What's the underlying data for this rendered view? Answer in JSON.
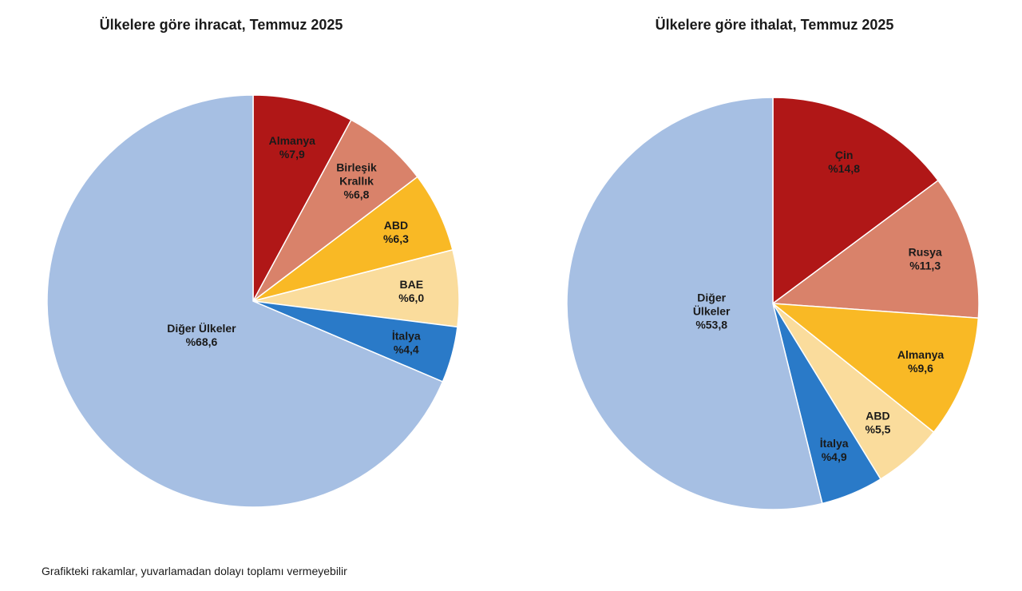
{
  "chart_data": [
    {
      "type": "pie",
      "title": "Ülkelere göre ihracat, Temmuz 2025",
      "categories": [
        "Almanya",
        "Birleşik\nKrallık",
        "ABD",
        "BAE",
        "İtalya",
        "Diğer Ülkeler"
      ],
      "values": [
        7.9,
        6.8,
        6.3,
        6.0,
        4.4,
        68.6
      ],
      "value_labels": [
        "%7,9",
        "%6,8",
        "%6,3",
        "%6,0",
        "%4,4",
        "%68,6"
      ],
      "colors": [
        "#b01717",
        "#d9826a",
        "#f9b925",
        "#fadc9c",
        "#2a7ac8",
        "#a6bfe3"
      ]
    },
    {
      "type": "pie",
      "title": "Ülkelere göre ithalat, Temmuz 2025",
      "categories": [
        "Çin",
        "Rusya",
        "Almanya",
        "ABD",
        "İtalya",
        "Diğer\nÜlkeler"
      ],
      "values": [
        14.8,
        11.3,
        9.6,
        5.5,
        4.9,
        53.8
      ],
      "value_labels": [
        "%14,8",
        "%11,3",
        "%9,6",
        "%5,5",
        "%4,9",
        "%53,8"
      ],
      "colors": [
        "#b01717",
        "#d9826a",
        "#f9b925",
        "#fadc9c",
        "#2a7ac8",
        "#a6bfe3"
      ]
    }
  ],
  "note": "Grafikteki rakamlar, yuvarlamadan dolayı toplamı vermeyebilir"
}
